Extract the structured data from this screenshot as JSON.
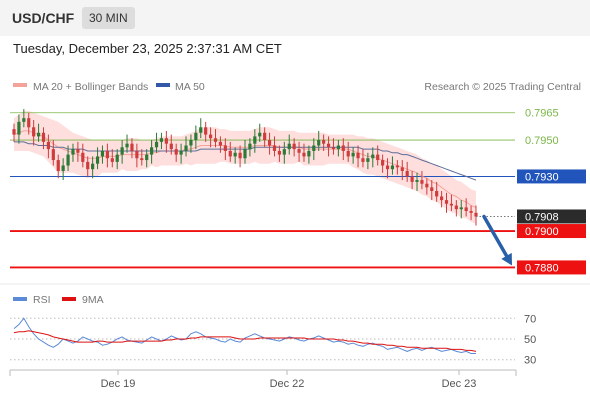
{
  "header": {
    "pair": "USD/CHF",
    "timeframe": "30 MIN"
  },
  "timestamp": "Tuesday, December 23, 2025 2:37:31 AM CET",
  "source": "Research © 2025 Trading Central",
  "colors": {
    "green": "#7ab648",
    "blue": "#2255bb",
    "red": "#ee1111",
    "candle_up": "#2c7a36",
    "candle_down": "#cf3c3c",
    "band": "#ffd3d3",
    "ma20": "#f4a39a",
    "ma50": "#5d6f9a",
    "rsi": "#5b8ad6",
    "rsi_ma": "#dd1111",
    "arrow": "#2860a8"
  },
  "chart_data": [
    {
      "type": "candlestick",
      "title": "",
      "legend": [
        {
          "name": "MA 20 + Bollinger Bands",
          "color": "#f4a39a"
        },
        {
          "name": "MA 50",
          "color": "#3358a8"
        }
      ],
      "ylim": [
        0.7872,
        0.7972
      ],
      "x_ticks": [
        "Dec 19",
        "Dec 22",
        "Dec 23"
      ],
      "levels": [
        {
          "value": 0.7965,
          "label": "0.7965",
          "kind": "resistance",
          "color": "#7ab648"
        },
        {
          "value": 0.795,
          "label": "0.7950",
          "kind": "resistance",
          "color": "#7ab648"
        },
        {
          "value": 0.793,
          "label": "0.7930",
          "kind": "pivot",
          "color": "#2255bb"
        },
        {
          "value": 0.79,
          "label": "0.7900",
          "kind": "support",
          "color": "#ee1111"
        },
        {
          "value": 0.788,
          "label": "0.7880",
          "kind": "support",
          "color": "#ee1111"
        }
      ],
      "last_price": {
        "value": 0.7908,
        "label": "0.7908"
      },
      "forecast": {
        "from": 0.7908,
        "to": 0.788
      },
      "close": [
        0.7953,
        0.796,
        0.7962,
        0.7957,
        0.7952,
        0.7954,
        0.7949,
        0.7945,
        0.7939,
        0.7933,
        0.7936,
        0.7942,
        0.7945,
        0.7943,
        0.7938,
        0.7934,
        0.7937,
        0.7941,
        0.7944,
        0.794,
        0.7938,
        0.7942,
        0.7946,
        0.7948,
        0.7944,
        0.794,
        0.7939,
        0.7942,
        0.7946,
        0.7949,
        0.7951,
        0.7948,
        0.7945,
        0.7942,
        0.7944,
        0.7947,
        0.795,
        0.7954,
        0.7957,
        0.7953,
        0.7951,
        0.7949,
        0.7947,
        0.7944,
        0.7941,
        0.7943,
        0.794,
        0.7945,
        0.7948,
        0.7952,
        0.7954,
        0.795,
        0.7947,
        0.7944,
        0.7942,
        0.7945,
        0.7948,
        0.7945,
        0.7943,
        0.7941,
        0.7944,
        0.7947,
        0.795,
        0.7948,
        0.7946,
        0.7945,
        0.7947,
        0.7944,
        0.7941,
        0.7943,
        0.794,
        0.7938,
        0.794,
        0.7942,
        0.7939,
        0.7936,
        0.7934,
        0.7936,
        0.7935,
        0.7933,
        0.793,
        0.7927,
        0.7928,
        0.7926,
        0.7924,
        0.7922,
        0.7919,
        0.7917,
        0.7915,
        0.7914,
        0.7912,
        0.7913,
        0.7911,
        0.791,
        0.7908
      ],
      "ma20": [
        0.7953,
        0.7954,
        0.7955,
        0.7955,
        0.7954,
        0.7953,
        0.7952,
        0.795,
        0.7948,
        0.7946,
        0.7945,
        0.7944,
        0.7943,
        0.7942,
        0.7941,
        0.794,
        0.794,
        0.794,
        0.7941,
        0.7941,
        0.7941,
        0.7941,
        0.7942,
        0.7942,
        0.7942,
        0.7942,
        0.7942,
        0.7942,
        0.7943,
        0.7943,
        0.7944,
        0.7944,
        0.7944,
        0.7944,
        0.7944,
        0.7945,
        0.7945,
        0.7946,
        0.7947,
        0.7947,
        0.7947,
        0.7947,
        0.7947,
        0.7947,
        0.7946,
        0.7946,
        0.7946,
        0.7946,
        0.7946,
        0.7947,
        0.7947,
        0.7947,
        0.7947,
        0.7947,
        0.7946,
        0.7946,
        0.7946,
        0.7946,
        0.7946,
        0.7945,
        0.7945,
        0.7945,
        0.7945,
        0.7945,
        0.7945,
        0.7945,
        0.7945,
        0.7945,
        0.7945,
        0.7944,
        0.7943,
        0.7942,
        0.7941,
        0.7941,
        0.794,
        0.7939,
        0.7938,
        0.7937,
        0.7936,
        0.7935,
        0.7934,
        0.7933,
        0.7932,
        0.793,
        0.7929,
        0.7927,
        0.7926,
        0.7924,
        0.7922,
        0.792,
        0.7919,
        0.7917,
        0.7916,
        0.7914,
        0.7913
      ],
      "bb_upper": [
        0.7962,
        0.7964,
        0.7966,
        0.7966,
        0.7965,
        0.7964,
        0.7963,
        0.7962,
        0.7961,
        0.796,
        0.7958,
        0.7956,
        0.7954,
        0.7953,
        0.7952,
        0.7951,
        0.795,
        0.795,
        0.795,
        0.795,
        0.795,
        0.795,
        0.795,
        0.7951,
        0.7951,
        0.7951,
        0.795,
        0.795,
        0.795,
        0.7951,
        0.7952,
        0.7952,
        0.7952,
        0.7952,
        0.7952,
        0.7953,
        0.7954,
        0.7955,
        0.7957,
        0.7957,
        0.7957,
        0.7957,
        0.7956,
        0.7956,
        0.7955,
        0.7955,
        0.7955,
        0.7955,
        0.7955,
        0.7956,
        0.7957,
        0.7957,
        0.7957,
        0.7956,
        0.7955,
        0.7955,
        0.7955,
        0.7955,
        0.7954,
        0.7954,
        0.7954,
        0.7954,
        0.7954,
        0.7954,
        0.7953,
        0.7953,
        0.7953,
        0.7953,
        0.7953,
        0.7953,
        0.7952,
        0.7952,
        0.7951,
        0.7951,
        0.795,
        0.7949,
        0.7948,
        0.7947,
        0.7946,
        0.7945,
        0.7944,
        0.7943,
        0.7942,
        0.794,
        0.7939,
        0.7937,
        0.7936,
        0.7934,
        0.7932,
        0.793,
        0.7928,
        0.7927,
        0.7925,
        0.7923,
        0.7922
      ],
      "bb_lower": [
        0.7944,
        0.7944,
        0.7944,
        0.7944,
        0.7943,
        0.7942,
        0.7941,
        0.7938,
        0.7935,
        0.7932,
        0.7932,
        0.7932,
        0.7932,
        0.7931,
        0.793,
        0.7929,
        0.793,
        0.793,
        0.7932,
        0.7932,
        0.7932,
        0.7932,
        0.7934,
        0.7933,
        0.7933,
        0.7933,
        0.7934,
        0.7934,
        0.7936,
        0.7935,
        0.7936,
        0.7936,
        0.7936,
        0.7936,
        0.7936,
        0.7937,
        0.7936,
        0.7937,
        0.7937,
        0.7937,
        0.7937,
        0.7937,
        0.7938,
        0.7938,
        0.7937,
        0.7937,
        0.7937,
        0.7937,
        0.7937,
        0.7938,
        0.7937,
        0.7937,
        0.7937,
        0.7938,
        0.7937,
        0.7937,
        0.7937,
        0.7937,
        0.7938,
        0.7936,
        0.7936,
        0.7936,
        0.7936,
        0.7936,
        0.7937,
        0.7937,
        0.7937,
        0.7937,
        0.7937,
        0.7935,
        0.7934,
        0.7932,
        0.7931,
        0.7931,
        0.793,
        0.7929,
        0.7928,
        0.7927,
        0.7926,
        0.7925,
        0.7924,
        0.7923,
        0.7922,
        0.792,
        0.7919,
        0.7917,
        0.7916,
        0.7914,
        0.7912,
        0.791,
        0.791,
        0.7907,
        0.7907,
        0.7905,
        0.7904
      ],
      "ma50": [
        0.7949,
        0.7949,
        0.7949,
        0.7948,
        0.7948,
        0.7947,
        0.7947,
        0.7947,
        0.7946,
        0.7946,
        0.7946,
        0.7945,
        0.7945,
        0.7945,
        0.7945,
        0.7944,
        0.7944,
        0.7944,
        0.7944,
        0.7944,
        0.7944,
        0.7944,
        0.7944,
        0.7944,
        0.7944,
        0.7944,
        0.7944,
        0.7944,
        0.7944,
        0.7944,
        0.7944,
        0.7944,
        0.7944,
        0.7944,
        0.7944,
        0.7944,
        0.7944,
        0.7944,
        0.7945,
        0.7945,
        0.7945,
        0.7945,
        0.7945,
        0.7945,
        0.7945,
        0.7945,
        0.7945,
        0.7945,
        0.7945,
        0.7946,
        0.7946,
        0.7946,
        0.7946,
        0.7946,
        0.7946,
        0.7946,
        0.7946,
        0.7946,
        0.7946,
        0.7946,
        0.7946,
        0.7946,
        0.7946,
        0.7946,
        0.7946,
        0.7946,
        0.7946,
        0.7946,
        0.7946,
        0.7946,
        0.7946,
        0.7945,
        0.7945,
        0.7945,
        0.7945,
        0.7944,
        0.7944,
        0.7943,
        0.7943,
        0.7942,
        0.7942,
        0.7941,
        0.794,
        0.7939,
        0.7938,
        0.7937,
        0.7936,
        0.7935,
        0.7934,
        0.7933,
        0.7932,
        0.7931,
        0.793,
        0.7929,
        0.7928
      ]
    },
    {
      "type": "line",
      "title": "",
      "legend": [
        {
          "name": "RSI",
          "color": "#5b8ad6"
        },
        {
          "name": "9MA",
          "color": "#dd1111"
        }
      ],
      "ylim": [
        22,
        78
      ],
      "y_ticks": [
        70,
        50,
        30
      ],
      "series": [
        {
          "name": "RSI",
          "values": [
            60,
            64,
            70,
            62,
            55,
            50,
            47,
            44,
            42,
            45,
            50,
            48,
            46,
            48,
            52,
            50,
            48,
            47,
            44,
            45,
            47,
            50,
            52,
            49,
            48,
            47,
            46,
            49,
            52,
            50,
            48,
            50,
            53,
            51,
            49,
            50,
            55,
            57,
            55,
            52,
            51,
            50,
            48,
            47,
            50,
            48,
            47,
            51,
            53,
            55,
            53,
            51,
            50,
            49,
            48,
            50,
            52,
            51,
            49,
            48,
            50,
            51,
            53,
            51,
            49,
            47,
            48,
            47,
            45,
            46,
            44,
            43,
            45,
            46,
            44,
            43,
            40,
            41,
            42,
            40,
            38,
            40,
            41,
            39,
            41,
            42,
            40,
            38,
            39,
            40,
            38,
            37,
            38,
            36,
            36
          ]
        },
        {
          "name": "9MA",
          "values": [
            56,
            57,
            57,
            58,
            57,
            56,
            55,
            54,
            52,
            51,
            50,
            49,
            48,
            47,
            47,
            47,
            47,
            48,
            48,
            47,
            47,
            47,
            47,
            48,
            48,
            48,
            48,
            48,
            48,
            48,
            48,
            49,
            49,
            50,
            50,
            50,
            51,
            51,
            52,
            52,
            52,
            52,
            52,
            52,
            52,
            51,
            50,
            50,
            50,
            50,
            51,
            51,
            51,
            51,
            51,
            51,
            51,
            51,
            51,
            51,
            50,
            50,
            50,
            50,
            50,
            50,
            49,
            49,
            48,
            48,
            47,
            46,
            46,
            45,
            45,
            45,
            44,
            44,
            43,
            43,
            42,
            42,
            42,
            41,
            41,
            41,
            41,
            41,
            41,
            40,
            40,
            40,
            39,
            39,
            38
          ]
        }
      ]
    }
  ]
}
